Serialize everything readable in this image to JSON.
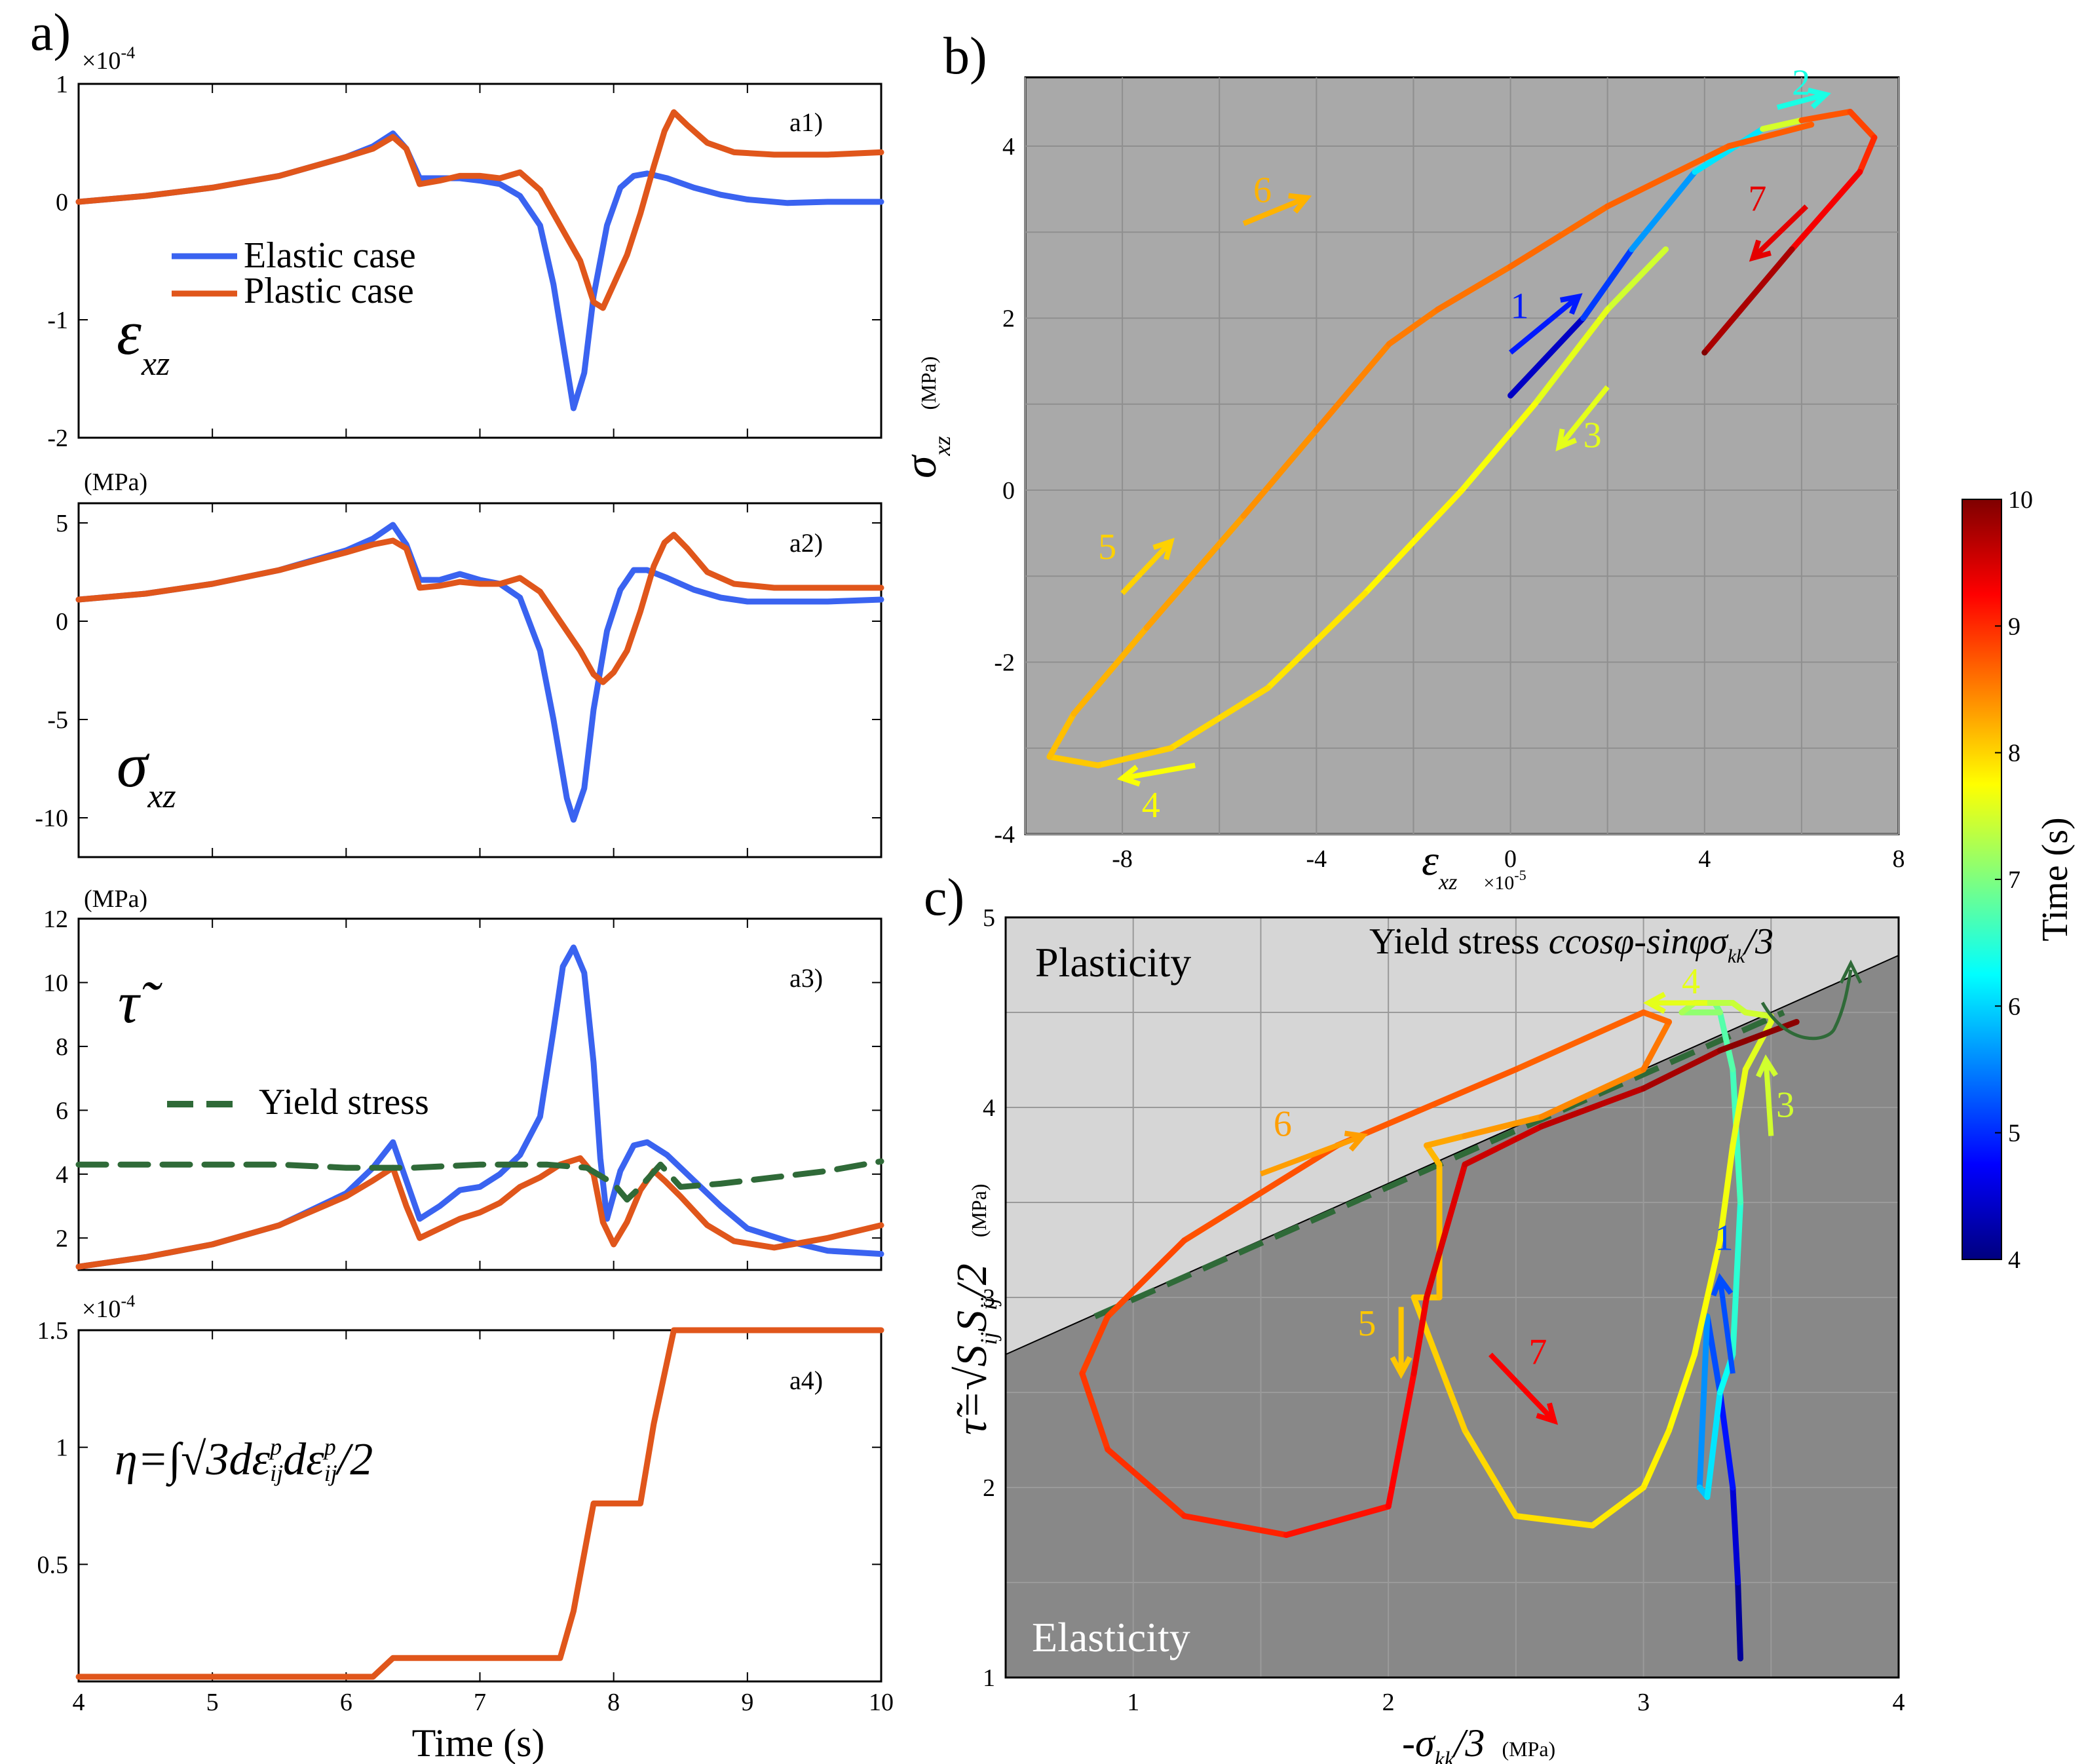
{
  "panel_labels": {
    "a": "a)",
    "b": "b)",
    "c": "c)",
    "a1": "a1)",
    "a2": "a2)",
    "a3": "a3)",
    "a4": "a4)"
  },
  "colors": {
    "elastic": "#3a63f0",
    "plastic": "#e0561b",
    "yield": "#2f6a38",
    "bg_b": "#a9a9a9",
    "elastic_region": "#888888",
    "plastic_region": "#d6d6d6"
  },
  "labels": {
    "elastic_case": "Elastic case",
    "plastic_case": "Plastic case",
    "yield_stress": "Yield stress",
    "time_axis": "Time (s)",
    "mpa": "(MPa)",
    "exp4": "×10",
    "exp4_power": "-4",
    "exp5": "×10",
    "exp5_power": "-5",
    "plasticity": "Plasticity",
    "elasticity": "Elasticity",
    "yield_formula_prefix": "Yield stress ",
    "yield_formula": "ccosφ-sinφσ",
    "yield_formula_sub": "kk",
    "yield_formula_tail": "/3",
    "colorbar_label": "Time (s)",
    "eps_xz_sym": "ε",
    "sigma_sym": "σ",
    "xz_sub": "xz",
    "tau_sym": "τ̃",
    "eta_sym": "η=∫√3dε",
    "tau_def": "τ̃=√S",
    "ij_sub": "ij",
    "tau_def_tail": "/2",
    "x_label_c": "-σ",
    "x_label_c_sub": "kk",
    "x_label_c_tail": "/3"
  },
  "chart_data": [
    {
      "id": "a1",
      "type": "line",
      "xlim": [
        4,
        10
      ],
      "ylim": [
        -2,
        1
      ],
      "xticks": [
        4,
        5,
        6,
        7,
        8,
        9,
        10
      ],
      "yticks": [
        -2,
        -1,
        0,
        1
      ],
      "ytick_labels": [
        "-2",
        "-1",
        "0",
        "1"
      ],
      "y_multiplier": "×10^-4",
      "series": [
        {
          "name": "Elastic case",
          "color": "#3a63f0",
          "x": [
            4,
            4.5,
            5,
            5.5,
            6,
            6.2,
            6.35,
            6.45,
            6.55,
            6.7,
            6.85,
            7,
            7.15,
            7.3,
            7.45,
            7.55,
            7.65,
            7.7,
            7.78,
            7.85,
            7.95,
            8.05,
            8.15,
            8.25,
            8.4,
            8.6,
            8.8,
            9,
            9.3,
            9.6,
            10
          ],
          "y": [
            0,
            0.05,
            0.12,
            0.22,
            0.38,
            0.47,
            0.58,
            0.45,
            0.2,
            0.2,
            0.2,
            0.18,
            0.15,
            0.05,
            -0.2,
            -0.7,
            -1.4,
            -1.75,
            -1.45,
            -0.8,
            -0.2,
            0.12,
            0.22,
            0.24,
            0.2,
            0.12,
            0.06,
            0.02,
            -0.01,
            0,
            0
          ]
        },
        {
          "name": "Plastic case",
          "color": "#e0561b",
          "x": [
            4,
            4.5,
            5,
            5.5,
            6,
            6.2,
            6.35,
            6.45,
            6.55,
            6.7,
            6.85,
            7,
            7.15,
            7.3,
            7.45,
            7.6,
            7.75,
            7.85,
            7.92,
            8.0,
            8.1,
            8.2,
            8.3,
            8.38,
            8.45,
            8.55,
            8.7,
            8.9,
            9.2,
            9.6,
            10
          ],
          "y": [
            0,
            0.05,
            0.12,
            0.22,
            0.38,
            0.45,
            0.55,
            0.45,
            0.15,
            0.18,
            0.22,
            0.22,
            0.2,
            0.25,
            0.1,
            -0.2,
            -0.5,
            -0.85,
            -0.9,
            -0.7,
            -0.45,
            -0.1,
            0.3,
            0.6,
            0.76,
            0.65,
            0.5,
            0.42,
            0.4,
            0.4,
            0.42
          ]
        }
      ]
    },
    {
      "id": "a2",
      "type": "line",
      "ylabel": "(MPa)",
      "xlim": [
        4,
        10
      ],
      "ylim": [
        -12,
        6
      ],
      "yticks": [
        -10,
        -5,
        0,
        5
      ],
      "series": [
        {
          "name": "Elastic case",
          "color": "#3a63f0",
          "x": [
            4,
            4.5,
            5,
            5.5,
            6,
            6.2,
            6.35,
            6.45,
            6.55,
            6.7,
            6.85,
            7,
            7.15,
            7.3,
            7.45,
            7.55,
            7.65,
            7.7,
            7.78,
            7.85,
            7.95,
            8.05,
            8.15,
            8.25,
            8.4,
            8.6,
            8.8,
            9,
            9.3,
            9.6,
            10
          ],
          "y": [
            1.1,
            1.4,
            1.9,
            2.6,
            3.6,
            4.2,
            4.9,
            3.9,
            2.1,
            2.1,
            2.4,
            2.1,
            1.9,
            1.2,
            -1.5,
            -5,
            -9,
            -10.1,
            -8.5,
            -4.5,
            -0.5,
            1.6,
            2.6,
            2.6,
            2.2,
            1.6,
            1.2,
            1,
            1,
            1,
            1.1
          ]
        },
        {
          "name": "Plastic case",
          "color": "#e0561b",
          "x": [
            4,
            4.5,
            5,
            5.5,
            6,
            6.2,
            6.35,
            6.45,
            6.55,
            6.7,
            6.85,
            7,
            7.15,
            7.3,
            7.45,
            7.6,
            7.75,
            7.85,
            7.92,
            8.0,
            8.1,
            8.2,
            8.3,
            8.38,
            8.45,
            8.55,
            8.7,
            8.9,
            9.2,
            9.6,
            10
          ],
          "y": [
            1.1,
            1.4,
            1.9,
            2.6,
            3.5,
            3.9,
            4.1,
            3.7,
            1.7,
            1.8,
            2.0,
            1.9,
            1.9,
            2.2,
            1.5,
            0,
            -1.5,
            -2.7,
            -3.1,
            -2.6,
            -1.5,
            0.5,
            2.8,
            4,
            4.4,
            3.7,
            2.5,
            1.9,
            1.7,
            1.7,
            1.7
          ]
        }
      ]
    },
    {
      "id": "a3",
      "type": "line",
      "ylabel": "(MPa)",
      "xlim": [
        4,
        10
      ],
      "ylim": [
        1,
        12
      ],
      "yticks": [
        2,
        4,
        6,
        8,
        10,
        12
      ],
      "series": [
        {
          "name": "Elastic case",
          "color": "#3a63f0",
          "x": [
            4,
            4.5,
            5,
            5.5,
            6,
            6.2,
            6.35,
            6.45,
            6.55,
            6.7,
            6.85,
            7,
            7.15,
            7.3,
            7.45,
            7.55,
            7.62,
            7.7,
            7.78,
            7.85,
            7.9,
            7.95,
            8.05,
            8.15,
            8.25,
            8.4,
            8.6,
            8.8,
            9,
            9.3,
            9.6,
            10
          ],
          "y": [
            1.1,
            1.4,
            1.8,
            2.4,
            3.4,
            4.2,
            5.0,
            3.8,
            2.6,
            3.0,
            3.5,
            3.6,
            4.0,
            4.6,
            5.8,
            8.5,
            10.5,
            11.1,
            10.3,
            7.5,
            4.5,
            2.6,
            4.1,
            4.9,
            5.0,
            4.6,
            3.8,
            3.0,
            2.3,
            1.9,
            1.6,
            1.5
          ]
        },
        {
          "name": "Plastic case",
          "color": "#e0561b",
          "x": [
            4,
            4.5,
            5,
            5.5,
            6,
            6.2,
            6.35,
            6.45,
            6.55,
            6.7,
            6.85,
            7,
            7.15,
            7.3,
            7.45,
            7.6,
            7.75,
            7.85,
            7.92,
            8.0,
            8.1,
            8.2,
            8.3,
            8.38,
            8.5,
            8.7,
            8.9,
            9.2,
            9.6,
            10
          ],
          "y": [
            1.1,
            1.4,
            1.8,
            2.4,
            3.3,
            3.8,
            4.2,
            3.0,
            2.0,
            2.3,
            2.6,
            2.8,
            3.1,
            3.6,
            3.9,
            4.3,
            4.5,
            4.0,
            2.5,
            1.8,
            2.5,
            3.5,
            4.1,
            3.8,
            3.3,
            2.4,
            1.9,
            1.7,
            2.0,
            2.4
          ]
        },
        {
          "name": "Yield stress",
          "color": "#2f6a38",
          "dashed": true,
          "x": [
            4,
            4.5,
            5,
            5.5,
            6,
            6.5,
            7,
            7.5,
            7.8,
            8.0,
            8.1,
            8.2,
            8.35,
            8.5,
            8.8,
            9.2,
            9.6,
            10
          ],
          "y": [
            4.3,
            4.3,
            4.3,
            4.3,
            4.2,
            4.2,
            4.3,
            4.3,
            4.2,
            3.7,
            3.2,
            3.6,
            4.3,
            3.6,
            3.7,
            3.9,
            4.1,
            4.4
          ]
        }
      ]
    },
    {
      "id": "a4",
      "type": "line",
      "xlabel": "Time (s)",
      "xlim": [
        4,
        10
      ],
      "ylim": [
        0,
        1.5
      ],
      "xticks": [
        4,
        5,
        6,
        7,
        8,
        9,
        10
      ],
      "yticks": [
        0.5,
        1,
        1.5
      ],
      "ytick_labels": [
        "0.5",
        "1",
        "1.5"
      ],
      "y_multiplier": "×10^-4",
      "series": [
        {
          "name": "Plastic case",
          "color": "#e0561b",
          "x": [
            4,
            6.2,
            6.35,
            7.6,
            7.7,
            7.85,
            7.9,
            8.2,
            8.3,
            8.45,
            8.5,
            10
          ],
          "y": [
            0.02,
            0.02,
            0.1,
            0.1,
            0.3,
            0.76,
            0.76,
            0.76,
            1.1,
            1.5,
            1.5,
            1.5
          ]
        }
      ]
    },
    {
      "id": "b",
      "type": "line",
      "xlabel": "ε_xz ×10^-5",
      "ylabel": "σ_xz (MPa)",
      "xlim": [
        -10,
        8
      ],
      "ylim": [
        -4,
        4.8
      ],
      "xticks": [
        -8,
        -4,
        0,
        4,
        8
      ],
      "yticks": [
        -4,
        -2,
        0,
        2,
        4
      ],
      "colored_by": "Time (s)",
      "path": {
        "x": [
          0,
          1.5,
          2.5,
          3.8,
          5.2,
          6.0,
          7.0,
          7.5,
          7.2,
          5.8,
          4.0,
          4.0,
          3.2,
          2.0,
          0.5,
          -1.0,
          -3.0,
          -5.0,
          -7.0,
          -8.5,
          -9.5,
          -9.0,
          -7.5,
          -5.5,
          -4.0,
          -2.5,
          -1.5,
          0.0,
          2.0,
          4.5,
          6.2
        ],
        "y": [
          1.1,
          2.0,
          2.8,
          3.7,
          4.2,
          4.3,
          4.4,
          4.1,
          3.7,
          2.8,
          1.6,
          1.6,
          2.8,
          2.1,
          1.0,
          0.0,
          -1.2,
          -2.3,
          -3.0,
          -3.2,
          -3.1,
          -2.6,
          -1.6,
          -0.3,
          0.7,
          1.7,
          2.1,
          2.6,
          3.3,
          4.0,
          4.25
        ],
        "t": [
          4,
          4.8,
          5.4,
          5.9,
          6.3,
          8.7,
          8.8,
          8.9,
          9.1,
          9.5,
          10,
          10,
          7.4,
          7.55,
          7.65,
          7.75,
          7.85,
          7.95,
          8.0,
          8.05,
          8.1,
          8.15,
          8.25,
          8.35,
          8.45,
          8.5,
          8.55,
          8.6,
          8.65,
          8.7,
          8.72
        ]
      },
      "annotations": [
        "1",
        "2",
        "3",
        "4",
        "5",
        "6",
        "7"
      ]
    },
    {
      "id": "c",
      "type": "line",
      "xlabel": "-σ_kk/3 (MPa)",
      "ylabel": "τ̃ (MPa)",
      "xlim": [
        0.5,
        4
      ],
      "ylim": [
        1,
        5
      ],
      "xticks": [
        1,
        2,
        3,
        4
      ],
      "yticks": [
        1,
        2,
        3,
        4,
        5
      ],
      "region_labels": [
        "Plasticity",
        "Elasticity"
      ],
      "yield_line": {
        "x": [
          0.5,
          4
        ],
        "y": [
          2.7,
          4.8
        ]
      },
      "path": {
        "x": [
          3.38,
          3.37,
          3.35,
          3.3,
          3.25,
          3.22,
          3.25,
          3.3,
          3.35,
          3.38,
          3.35,
          3.3,
          3.28,
          3.3,
          3.15,
          3.2,
          3.35,
          3.4,
          3.5,
          3.5,
          3.4,
          3.35,
          3.3,
          3.2,
          3.1,
          3.0,
          2.8,
          2.5,
          2.3,
          2.1,
          2.2,
          2.2,
          2.15,
          2.15,
          2.3,
          2.6,
          3.0,
          3.1,
          3.0,
          2.5,
          1.8,
          1.2,
          0.9,
          0.8,
          0.9,
          1.2,
          1.6,
          2.0,
          2.1,
          2.15,
          2.3,
          2.6,
          3.0,
          3.3,
          3.6
        ],
        "y": [
          1.1,
          1.5,
          2.0,
          2.5,
          2.9,
          2.0,
          1.95,
          2.5,
          2.7,
          3.5,
          4.2,
          4.5,
          4.55,
          4.5,
          4.5,
          4.55,
          4.55,
          4.5,
          4.48,
          4.45,
          4.2,
          3.8,
          3.3,
          2.7,
          2.3,
          2.0,
          1.8,
          1.85,
          2.3,
          3.0,
          3.0,
          3.7,
          3.8,
          3.8,
          3.85,
          3.95,
          4.2,
          4.45,
          4.5,
          4.2,
          3.8,
          3.3,
          2.9,
          2.6,
          2.2,
          1.85,
          1.75,
          1.9,
          2.6,
          3.0,
          3.7,
          3.9,
          4.1,
          4.3,
          4.45
        ],
        "t": [
          4,
          4.3,
          4.7,
          5.0,
          5.4,
          5.8,
          6.0,
          6.2,
          6.4,
          6.6,
          6.7,
          6.8,
          6.9,
          7.0,
          7.2,
          7.3,
          7.4,
          7.45,
          7.5,
          7.55,
          7.6,
          7.65,
          7.7,
          7.75,
          7.8,
          7.85,
          7.9,
          7.95,
          8.0,
          8.05,
          8.1,
          8.15,
          8.2,
          8.25,
          8.3,
          8.4,
          8.5,
          8.6,
          8.65,
          8.7,
          8.75,
          8.8,
          8.85,
          8.9,
          8.95,
          9.0,
          9.1,
          9.2,
          9.3,
          9.4,
          9.5,
          9.6,
          9.7,
          9.85,
          10
        ]
      },
      "annotations": [
        "1",
        "3",
        "4",
        "5",
        "6",
        "7"
      ]
    },
    {
      "id": "colorbar",
      "type": "heatmap",
      "label": "Time (s)",
      "range": [
        4,
        10
      ],
      "ticks": [
        4,
        5,
        6,
        7,
        8,
        9,
        10
      ]
    }
  ]
}
